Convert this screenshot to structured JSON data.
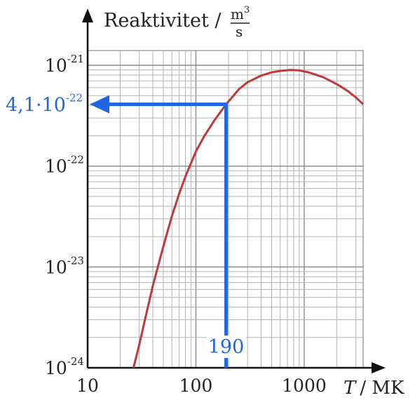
{
  "chart_data": {
    "type": "line",
    "x_scale": "log",
    "y_scale": "log",
    "xlim": [
      10,
      3500
    ],
    "ylim": [
      1e-24,
      1.4e-21
    ],
    "grid": true,
    "ylabel": "Reaktivitet /",
    "yunit_num": "m",
    "yunit_num_exp": "3",
    "yunit_den": "s",
    "xlabel_symbol": "T",
    "xlabel_unit": "/ MK",
    "x_ticks": [
      {
        "value": 10,
        "label": "10"
      },
      {
        "value": 100,
        "label": "100"
      },
      {
        "value": 1000,
        "label": "1000"
      }
    ],
    "y_ticks": [
      {
        "value": 1e-21,
        "base": "10",
        "exp": "-21"
      },
      {
        "value": 1e-22,
        "base": "10",
        "exp": "-22"
      },
      {
        "value": 1e-23,
        "base": "10",
        "exp": "-23"
      },
      {
        "value": 1e-24,
        "base": "10",
        "exp": "-24"
      }
    ],
    "series": [
      {
        "color": "#c0393a",
        "x": [
          26.5,
          30,
          35,
          40,
          50,
          60,
          70,
          80,
          100,
          120,
          150,
          190,
          250,
          300,
          400,
          500,
          600,
          750,
          900,
          1100,
          1500,
          2000,
          2500,
          3000,
          3500
        ],
        "y": [
          1e-24,
          1.7e-24,
          3.5e-24,
          6.5e-24,
          1.6e-23,
          3.2e-23,
          5.3e-23,
          7.9e-23,
          1.4e-22,
          2e-22,
          2.9e-22,
          4.1e-22,
          5.8e-22,
          6.8e-22,
          7.9e-22,
          8.5e-22,
          8.8e-22,
          9e-22,
          8.9e-22,
          8.5e-22,
          7.6e-22,
          6.5e-22,
          5.6e-22,
          4.8e-22,
          4.1e-22
        ]
      }
    ],
    "annotation": {
      "x": 190,
      "y": 4.1e-22,
      "color": "#1f66e5",
      "x_label": "190",
      "y_label_mantissa": "4,1·10",
      "y_label_exp": "-22"
    }
  }
}
